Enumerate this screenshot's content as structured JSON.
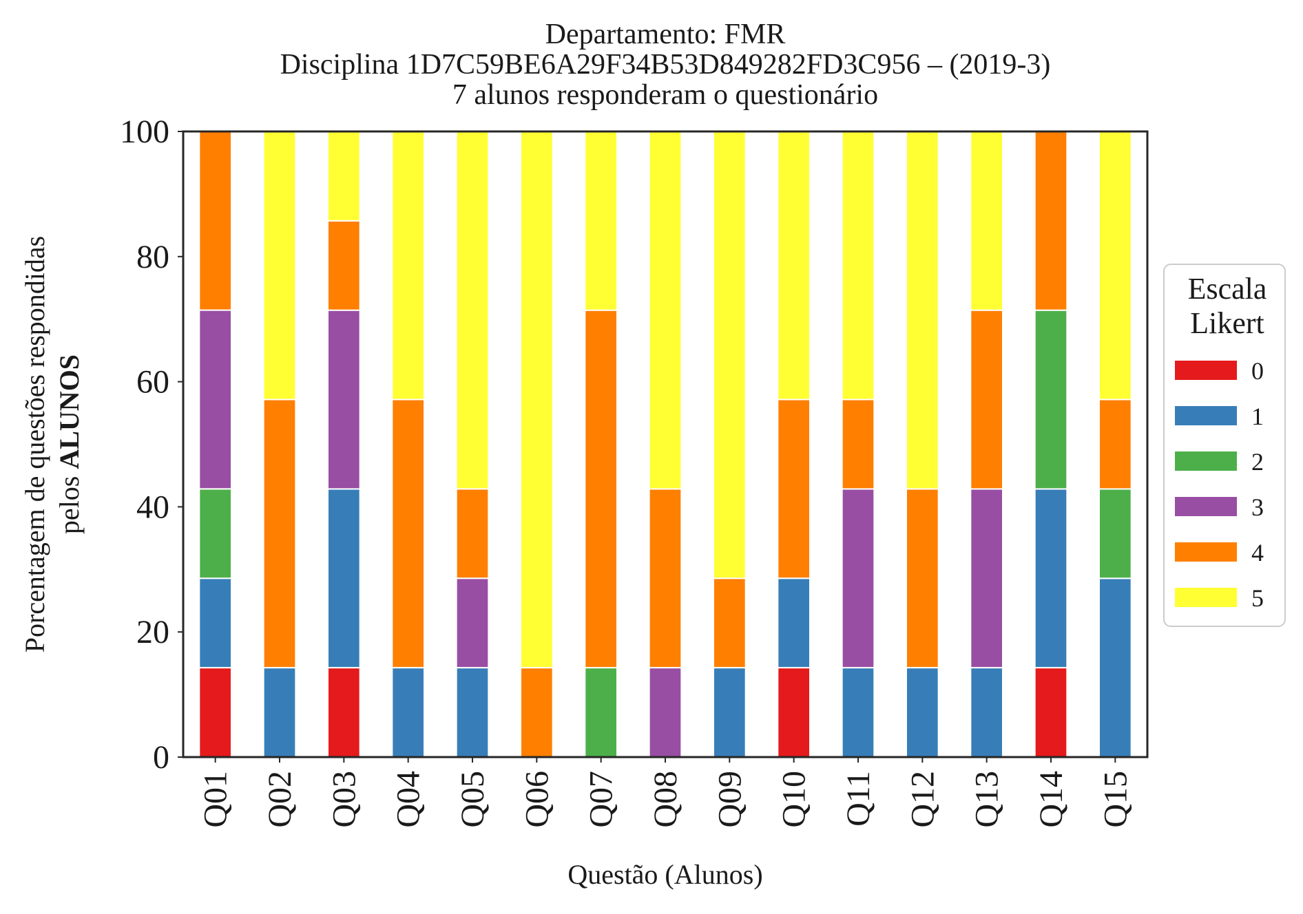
{
  "chart_data": {
    "type": "bar",
    "stacked": true,
    "title_lines": [
      "Departamento: FMR",
      "Disciplina 1D7C59BE6A29F34B53D849282FD3C956 – (2019-3)",
      "7 alunos responderam o questionário"
    ],
    "xlabel": "Questão (Alunos)",
    "ylabel_line1": "Porcentagem de questões respondidas",
    "ylabel_line2_prefix": "pelos ",
    "ylabel_line2_bold": "ALUNOS",
    "ylim": [
      0,
      100
    ],
    "yticks": [
      "0",
      "20",
      "40",
      "60",
      "80",
      "100"
    ],
    "grid": false,
    "legend_title_lines": [
      "Escala",
      "Likert"
    ],
    "legend_placement": "right",
    "categories": [
      "Q01",
      "Q02",
      "Q03",
      "Q04",
      "Q05",
      "Q06",
      "Q07",
      "Q08",
      "Q09",
      "Q10",
      "Q11",
      "Q12",
      "Q13",
      "Q14",
      "Q15"
    ],
    "series": [
      {
        "name": "0",
        "color": "#e41a1c",
        "values": [
          14.29,
          0,
          14.29,
          0,
          0,
          0,
          0,
          0,
          0,
          14.29,
          0,
          0,
          0,
          14.29,
          0
        ]
      },
      {
        "name": "1",
        "color": "#377eb8",
        "values": [
          14.29,
          14.29,
          28.57,
          14.29,
          14.29,
          0,
          0,
          0,
          14.29,
          14.29,
          14.29,
          14.29,
          14.29,
          28.57,
          28.57
        ]
      },
      {
        "name": "2",
        "color": "#4daf4a",
        "values": [
          14.29,
          0,
          0,
          0,
          0,
          0,
          14.29,
          0,
          0,
          0,
          0,
          0,
          0,
          28.57,
          14.29
        ]
      },
      {
        "name": "3",
        "color": "#984ea3",
        "values": [
          28.57,
          0,
          28.57,
          0,
          14.29,
          0,
          0,
          14.29,
          0,
          0,
          28.57,
          0,
          28.57,
          0,
          0
        ]
      },
      {
        "name": "4",
        "color": "#ff7f00",
        "values": [
          28.57,
          42.86,
          14.29,
          42.86,
          14.29,
          14.29,
          57.14,
          28.57,
          14.29,
          28.57,
          14.29,
          28.57,
          28.57,
          28.57,
          14.29
        ]
      },
      {
        "name": "5",
        "color": "#ffff33",
        "values": [
          0,
          42.86,
          14.29,
          42.86,
          57.14,
          85.71,
          28.57,
          57.14,
          71.43,
          42.86,
          42.86,
          57.14,
          28.57,
          0,
          42.86
        ]
      }
    ]
  }
}
